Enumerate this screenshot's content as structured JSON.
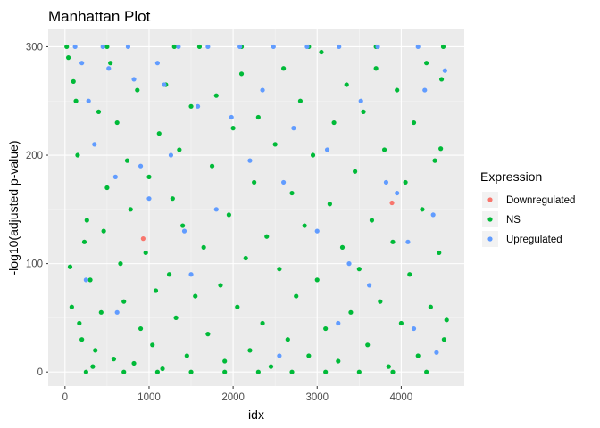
{
  "chart_data": {
    "type": "scatter",
    "title": "Manhattan Plot",
    "xlabel": "idx",
    "ylabel": "-log10(adjusted p-value)",
    "xlim": [
      -200,
      4750
    ],
    "ylim": [
      -13,
      316
    ],
    "x_ticks": [
      0,
      1000,
      2000,
      3000,
      4000
    ],
    "y_ticks": [
      0,
      100,
      200,
      300
    ],
    "grid": true,
    "legend": {
      "title": "Expression",
      "placement": "right"
    },
    "series": [
      {
        "name": "Downregulated",
        "color": "#F8766D",
        "points": [
          {
            "x": 930,
            "y": 123
          },
          {
            "x": 3890,
            "y": 156
          }
        ]
      },
      {
        "name": "NS",
        "color": "#00BA38",
        "points": [
          {
            "x": 20,
            "y": 300
          },
          {
            "x": 40,
            "y": 290
          },
          {
            "x": 60,
            "y": 97
          },
          {
            "x": 80,
            "y": 60
          },
          {
            "x": 100,
            "y": 268
          },
          {
            "x": 130,
            "y": 250
          },
          {
            "x": 150,
            "y": 200
          },
          {
            "x": 170,
            "y": 45
          },
          {
            "x": 200,
            "y": 30
          },
          {
            "x": 230,
            "y": 120
          },
          {
            "x": 260,
            "y": 140
          },
          {
            "x": 300,
            "y": 85
          },
          {
            "x": 330,
            "y": 5
          },
          {
            "x": 360,
            "y": 20
          },
          {
            "x": 400,
            "y": 240
          },
          {
            "x": 430,
            "y": 55
          },
          {
            "x": 460,
            "y": 130
          },
          {
            "x": 500,
            "y": 170
          },
          {
            "x": 540,
            "y": 285
          },
          {
            "x": 580,
            "y": 12
          },
          {
            "x": 620,
            "y": 230
          },
          {
            "x": 660,
            "y": 100
          },
          {
            "x": 700,
            "y": 65
          },
          {
            "x": 740,
            "y": 195
          },
          {
            "x": 780,
            "y": 150
          },
          {
            "x": 820,
            "y": 8
          },
          {
            "x": 860,
            "y": 260
          },
          {
            "x": 900,
            "y": 40
          },
          {
            "x": 960,
            "y": 110
          },
          {
            "x": 1000,
            "y": 180
          },
          {
            "x": 1040,
            "y": 25
          },
          {
            "x": 1080,
            "y": 75
          },
          {
            "x": 1120,
            "y": 220
          },
          {
            "x": 1160,
            "y": 3
          },
          {
            "x": 1200,
            "y": 265
          },
          {
            "x": 1240,
            "y": 90
          },
          {
            "x": 1280,
            "y": 160
          },
          {
            "x": 1320,
            "y": 50
          },
          {
            "x": 1360,
            "y": 205
          },
          {
            "x": 1400,
            "y": 135
          },
          {
            "x": 1450,
            "y": 15
          },
          {
            "x": 1500,
            "y": 245
          },
          {
            "x": 1550,
            "y": 70
          },
          {
            "x": 1600,
            "y": 300
          },
          {
            "x": 1650,
            "y": 115
          },
          {
            "x": 1700,
            "y": 35
          },
          {
            "x": 1750,
            "y": 190
          },
          {
            "x": 1800,
            "y": 255
          },
          {
            "x": 1850,
            "y": 80
          },
          {
            "x": 1900,
            "y": 10
          },
          {
            "x": 1950,
            "y": 145
          },
          {
            "x": 2000,
            "y": 225
          },
          {
            "x": 2050,
            "y": 60
          },
          {
            "x": 2100,
            "y": 275
          },
          {
            "x": 2150,
            "y": 105
          },
          {
            "x": 2200,
            "y": 20
          },
          {
            "x": 2250,
            "y": 175
          },
          {
            "x": 2300,
            "y": 235
          },
          {
            "x": 2350,
            "y": 45
          },
          {
            "x": 2400,
            "y": 125
          },
          {
            "x": 2450,
            "y": 5
          },
          {
            "x": 2500,
            "y": 210
          },
          {
            "x": 2550,
            "y": 95
          },
          {
            "x": 2600,
            "y": 280
          },
          {
            "x": 2650,
            "y": 30
          },
          {
            "x": 2700,
            "y": 165
          },
          {
            "x": 2750,
            "y": 70
          },
          {
            "x": 2800,
            "y": 250
          },
          {
            "x": 2850,
            "y": 135
          },
          {
            "x": 2900,
            "y": 15
          },
          {
            "x": 2950,
            "y": 200
          },
          {
            "x": 3000,
            "y": 85
          },
          {
            "x": 3050,
            "y": 295
          },
          {
            "x": 3100,
            "y": 40
          },
          {
            "x": 3150,
            "y": 155
          },
          {
            "x": 3200,
            "y": 230
          },
          {
            "x": 3250,
            "y": 10
          },
          {
            "x": 3300,
            "y": 115
          },
          {
            "x": 3350,
            "y": 265
          },
          {
            "x": 3400,
            "y": 55
          },
          {
            "x": 3450,
            "y": 185
          },
          {
            "x": 3500,
            "y": 95
          },
          {
            "x": 3550,
            "y": 240
          },
          {
            "x": 3600,
            "y": 25
          },
          {
            "x": 3650,
            "y": 140
          },
          {
            "x": 3700,
            "y": 280
          },
          {
            "x": 3750,
            "y": 65
          },
          {
            "x": 3800,
            "y": 205
          },
          {
            "x": 3850,
            "y": 5
          },
          {
            "x": 3900,
            "y": 120
          },
          {
            "x": 3950,
            "y": 260
          },
          {
            "x": 4000,
            "y": 45
          },
          {
            "x": 4050,
            "y": 175
          },
          {
            "x": 4100,
            "y": 90
          },
          {
            "x": 4150,
            "y": 230
          },
          {
            "x": 4200,
            "y": 15
          },
          {
            "x": 4250,
            "y": 150
          },
          {
            "x": 4300,
            "y": 285
          },
          {
            "x": 4350,
            "y": 60
          },
          {
            "x": 4400,
            "y": 195
          },
          {
            "x": 4450,
            "y": 110
          },
          {
            "x": 4480,
            "y": 270
          },
          {
            "x": 4510,
            "y": 30
          },
          {
            "x": 4540,
            "y": 48
          },
          {
            "x": 4470,
            "y": 206
          },
          {
            "x": 250,
            "y": 0
          },
          {
            "x": 700,
            "y": 0
          },
          {
            "x": 1100,
            "y": 0
          },
          {
            "x": 1500,
            "y": 0
          },
          {
            "x": 1900,
            "y": 0
          },
          {
            "x": 2300,
            "y": 0
          },
          {
            "x": 2700,
            "y": 0
          },
          {
            "x": 3100,
            "y": 0
          },
          {
            "x": 3500,
            "y": 0
          },
          {
            "x": 3900,
            "y": 0
          },
          {
            "x": 4300,
            "y": 0
          },
          {
            "x": 500,
            "y": 300
          },
          {
            "x": 1300,
            "y": 300
          },
          {
            "x": 2100,
            "y": 300
          },
          {
            "x": 2900,
            "y": 300
          },
          {
            "x": 3700,
            "y": 300
          },
          {
            "x": 4500,
            "y": 300
          }
        ]
      },
      {
        "name": "Upregulated",
        "color": "#619CFF",
        "points": [
          {
            "x": 120,
            "y": 300
          },
          {
            "x": 200,
            "y": 285
          },
          {
            "x": 280,
            "y": 250
          },
          {
            "x": 350,
            "y": 210
          },
          {
            "x": 450,
            "y": 300
          },
          {
            "x": 520,
            "y": 280
          },
          {
            "x": 600,
            "y": 180
          },
          {
            "x": 750,
            "y": 300
          },
          {
            "x": 820,
            "y": 270
          },
          {
            "x": 900,
            "y": 190
          },
          {
            "x": 1000,
            "y": 160
          },
          {
            "x": 1100,
            "y": 285
          },
          {
            "x": 1180,
            "y": 265
          },
          {
            "x": 1260,
            "y": 200
          },
          {
            "x": 1350,
            "y": 300
          },
          {
            "x": 1420,
            "y": 130
          },
          {
            "x": 1580,
            "y": 245
          },
          {
            "x": 1700,
            "y": 300
          },
          {
            "x": 1800,
            "y": 150
          },
          {
            "x": 1980,
            "y": 235
          },
          {
            "x": 2080,
            "y": 300
          },
          {
            "x": 2200,
            "y": 195
          },
          {
            "x": 2350,
            "y": 260
          },
          {
            "x": 2480,
            "y": 300
          },
          {
            "x": 2600,
            "y": 175
          },
          {
            "x": 2720,
            "y": 225
          },
          {
            "x": 2880,
            "y": 300
          },
          {
            "x": 3000,
            "y": 130
          },
          {
            "x": 3120,
            "y": 205
          },
          {
            "x": 3260,
            "y": 300
          },
          {
            "x": 3380,
            "y": 100
          },
          {
            "x": 3520,
            "y": 250
          },
          {
            "x": 3620,
            "y": 80
          },
          {
            "x": 3720,
            "y": 300
          },
          {
            "x": 3820,
            "y": 175
          },
          {
            "x": 3950,
            "y": 165
          },
          {
            "x": 4080,
            "y": 120
          },
          {
            "x": 4200,
            "y": 300
          },
          {
            "x": 4280,
            "y": 260
          },
          {
            "x": 4380,
            "y": 145
          },
          {
            "x": 4520,
            "y": 278
          },
          {
            "x": 4420,
            "y": 18
          },
          {
            "x": 250,
            "y": 85
          },
          {
            "x": 620,
            "y": 55
          },
          {
            "x": 1500,
            "y": 90
          },
          {
            "x": 2550,
            "y": 15
          },
          {
            "x": 3250,
            "y": 45
          },
          {
            "x": 4150,
            "y": 40
          }
        ]
      }
    ]
  }
}
